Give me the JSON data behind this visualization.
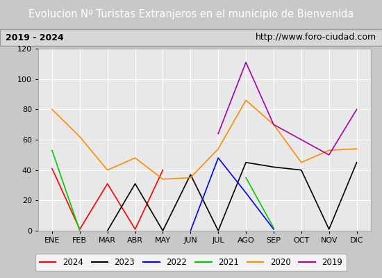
{
  "title": "Evolucion Nº Turistas Extranjeros en el municipio de Bienvenida",
  "subtitle_left": "2019 - 2024",
  "subtitle_right": "http://www.foro-ciudad.com",
  "months": [
    "ENE",
    "FEB",
    "MAR",
    "ABR",
    "MAY",
    "JUN",
    "JUL",
    "AGO",
    "SEP",
    "OCT",
    "NOV",
    "DIC"
  ],
  "series": {
    "2024": {
      "color": "#ff0000",
      "data": [
        41,
        1,
        31,
        1,
        40,
        null,
        null,
        null,
        null,
        null,
        null,
        null
      ]
    },
    "2023": {
      "color": "#000000",
      "data": [
        null,
        null,
        0,
        31,
        0,
        37,
        0,
        45,
        42,
        40,
        1,
        45
      ]
    },
    "2022": {
      "color": "#0000ff",
      "data": [
        null,
        null,
        null,
        null,
        null,
        0,
        48,
        25,
        1,
        null,
        null,
        null
      ]
    },
    "2021": {
      "color": "#00cc00",
      "data": [
        53,
        0,
        null,
        null,
        null,
        null,
        null,
        35,
        2,
        null,
        null,
        null
      ]
    },
    "2020": {
      "color": "#ff8c00",
      "data": [
        80,
        62,
        40,
        48,
        34,
        35,
        54,
        86,
        70,
        45,
        53,
        54
      ]
    },
    "2019": {
      "color": "#aa00aa",
      "data": [
        null,
        null,
        null,
        null,
        null,
        null,
        64,
        111,
        70,
        60,
        50,
        80
      ]
    }
  },
  "ylim": [
    0,
    120
  ],
  "yticks": [
    0,
    20,
    40,
    60,
    80,
    100,
    120
  ],
  "outer_bg": "#c8c8c8",
  "plot_bg_color": "#e8e8e8",
  "title_bg_color": "#4472c4",
  "title_fg_color": "#ffffff",
  "header_bg_color": "#d8d8d8",
  "legend_order": [
    "2024",
    "2023",
    "2022",
    "2021",
    "2020",
    "2019"
  ]
}
